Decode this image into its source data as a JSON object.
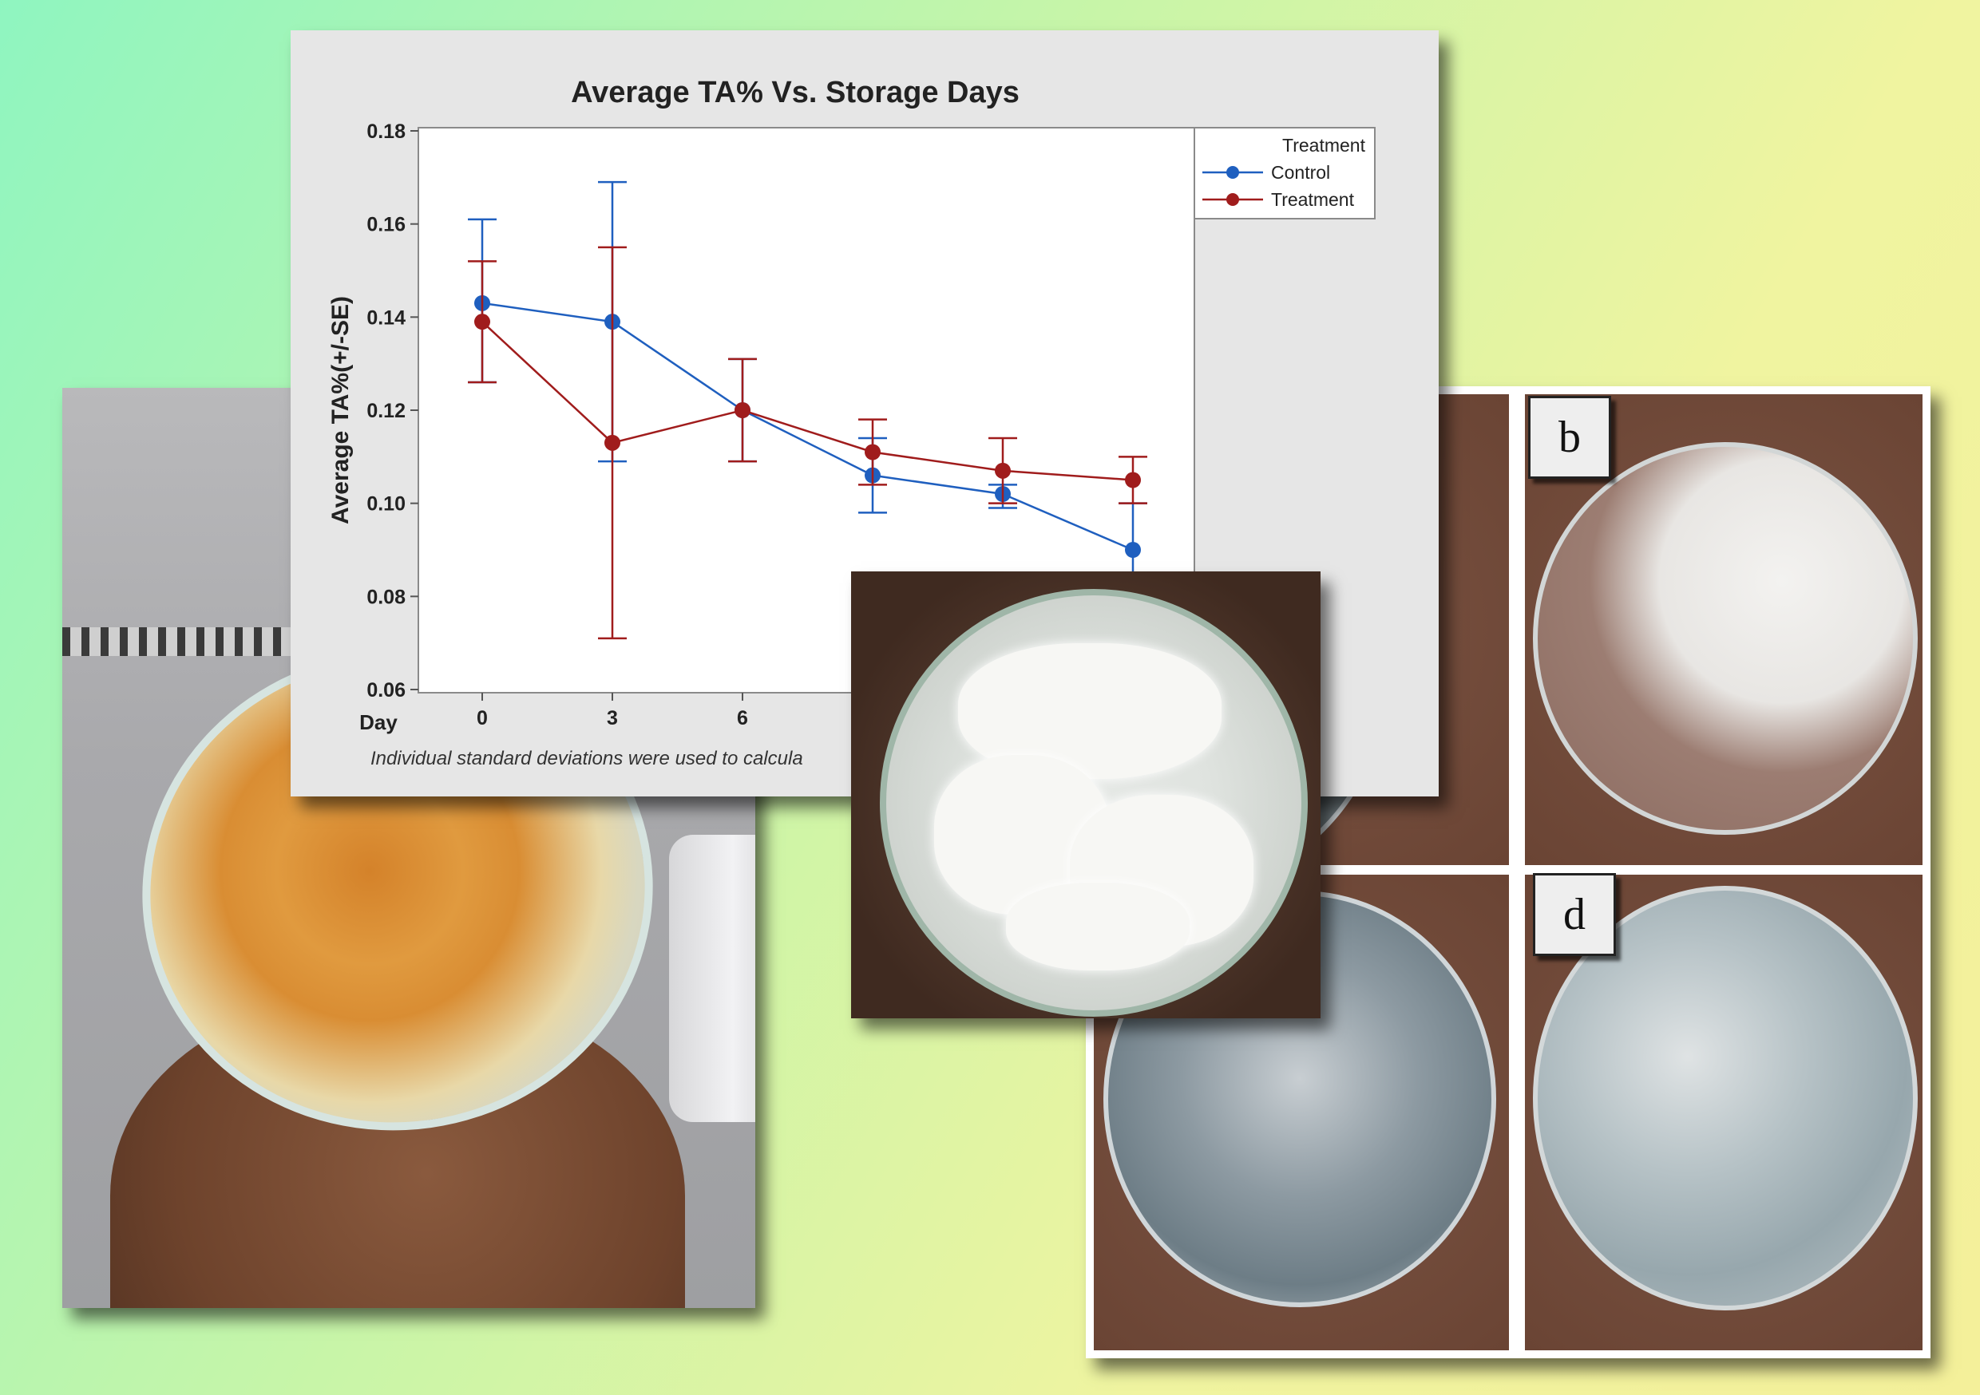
{
  "chart_data": {
    "type": "line",
    "title": "Average TA% Vs. Storage Days",
    "xlabel": "Day",
    "ylabel": "Average TA%(+/-SE)",
    "x": [
      0,
      3,
      6,
      9,
      12,
      15
    ],
    "x_tick_labels": [
      "0",
      "3",
      "6"
    ],
    "ylim": [
      0.06,
      0.18
    ],
    "y_ticks": [
      "0.06",
      "0.08",
      "0.10",
      "0.12",
      "0.14",
      "0.16",
      "0.18"
    ],
    "footnote": "Individual standard deviations were used to calcula",
    "legend": {
      "title": "Treatment",
      "placement": "top-right"
    },
    "series": [
      {
        "name": "Control",
        "color": "#1f5fbf",
        "values": [
          0.143,
          0.139,
          0.12,
          0.106,
          0.102,
          0.09
        ],
        "lower": [
          0.126,
          0.109,
          0.109,
          0.098,
          0.099,
          0.08
        ],
        "upper": [
          0.161,
          0.169,
          0.131,
          0.114,
          0.104,
          0.1
        ]
      },
      {
        "name": "Treatment",
        "color": "#a01c1c",
        "values": [
          0.139,
          0.113,
          0.12,
          0.111,
          0.107,
          0.105
        ],
        "lower": [
          0.126,
          0.071,
          0.109,
          0.104,
          0.1,
          0.1
        ],
        "upper": [
          0.152,
          0.155,
          0.131,
          0.118,
          0.114,
          0.11
        ]
      }
    ]
  },
  "panels": {
    "label_b": "b",
    "label_d": "d"
  }
}
